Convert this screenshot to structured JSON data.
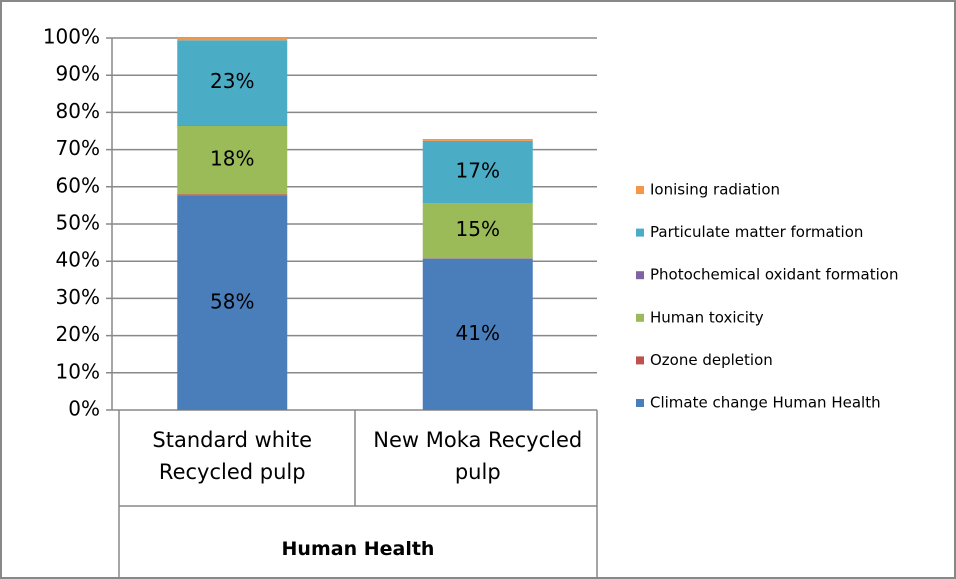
{
  "chart_data": {
    "type": "stacked_bar",
    "group_label": "Human Health",
    "categories": [
      "Standard white Recycled pulp",
      "New Moka Recycled pulp"
    ],
    "series": [
      {
        "name": "Climate change Human Health",
        "color": "#4a7ebb",
        "values": [
          57.6,
          40.7
        ],
        "value_labels": [
          "58%",
          "41%"
        ]
      },
      {
        "name": "Ozone depletion",
        "color": "#c0504d",
        "values": [
          0.4,
          0.1
        ]
      },
      {
        "name": "Human toxicity",
        "color": "#9bbb59",
        "values": [
          18.4,
          14.8
        ],
        "value_labels": [
          "18%",
          "15%"
        ]
      },
      {
        "name": "Photochemical oxidant formation",
        "color": "#8064a2",
        "values": [
          0.2,
          0.05
        ]
      },
      {
        "name": "Particulate matter formation",
        "color": "#4bacc6",
        "values": [
          22.8,
          16.7
        ],
        "value_labels": [
          "23%",
          "17%"
        ]
      },
      {
        "name": "Ionising radiation",
        "color": "#f79646",
        "values": [
          0.6,
          0.5
        ]
      }
    ],
    "ylim": [
      0,
      100
    ],
    "yticks": [
      {
        "value": 0,
        "label": "0%"
      },
      {
        "value": 10,
        "label": "10%"
      },
      {
        "value": 20,
        "label": "20%"
      },
      {
        "value": 30,
        "label": "30%"
      },
      {
        "value": 40,
        "label": "40%"
      },
      {
        "value": 50,
        "label": "50%"
      },
      {
        "value": 60,
        "label": "60%"
      },
      {
        "value": 70,
        "label": "70%"
      },
      {
        "value": 80,
        "label": "80%"
      },
      {
        "value": 90,
        "label": "90%"
      },
      {
        "value": 100,
        "label": "100%"
      }
    ],
    "grid": true,
    "legend": "right"
  }
}
